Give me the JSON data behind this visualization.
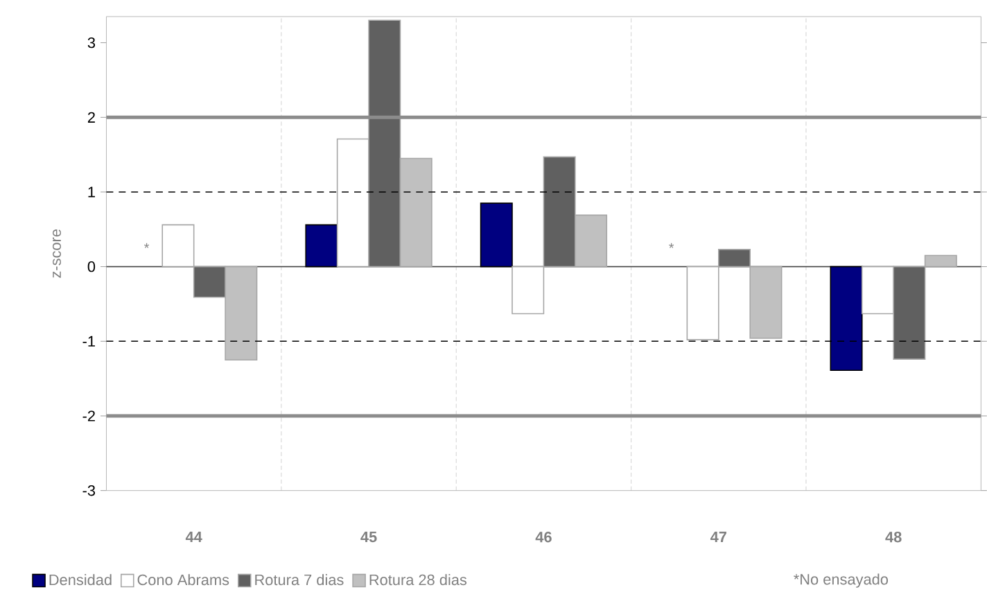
{
  "chart_data": {
    "type": "bar",
    "ylabel": "z-score",
    "categories": [
      "44",
      "45",
      "46",
      "47",
      "48"
    ],
    "series": [
      {
        "name": "Densidad",
        "color": "#000080",
        "values": [
          null,
          0.56,
          0.85,
          null,
          -1.39
        ]
      },
      {
        "name": "Cono Abrams",
        "color": "#ffffff",
        "values": [
          0.56,
          1.71,
          -0.63,
          -0.98,
          -0.63
        ]
      },
      {
        "name": "Rotura 7 dias",
        "color": "#606060",
        "values": [
          -0.41,
          3.3,
          1.47,
          0.23,
          -1.24
        ]
      },
      {
        "name": "Rotura 28 dias",
        "color": "#c0c0c0",
        "values": [
          -1.25,
          1.45,
          0.69,
          -0.96,
          0.15
        ]
      }
    ],
    "ylim": [
      -3,
      3.35
    ],
    "yticks": [
      -3,
      -2,
      -1,
      0,
      1,
      2,
      3
    ],
    "ref_lines": [
      {
        "axis": "y",
        "value": 2,
        "color": "#8c8c8c",
        "line_style": "solid"
      },
      {
        "axis": "y",
        "value": -2,
        "color": "#8c8c8c",
        "line_style": "solid"
      },
      {
        "axis": "y",
        "value": 1,
        "color": "#000000",
        "line_style": "dashed"
      },
      {
        "axis": "y",
        "value": -1,
        "color": "#000000",
        "line_style": "dashed"
      }
    ],
    "annotations": [
      "*",
      "*",
      "*No ensayado"
    ],
    "grid": "x",
    "legend": "bottom"
  }
}
